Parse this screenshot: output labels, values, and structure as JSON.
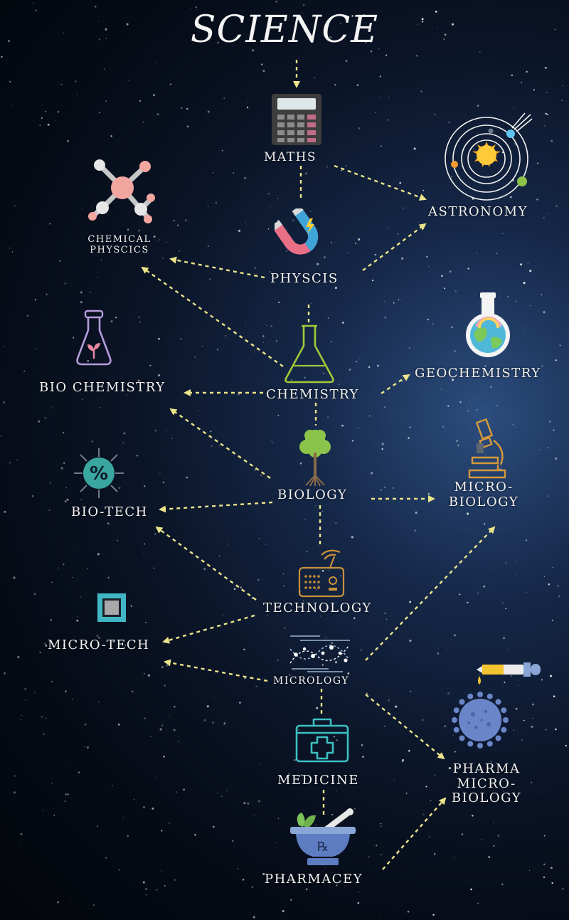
{
  "title": "SCIENCE",
  "labels": {
    "maths": "MATHS",
    "astronomy": "ASTRONOMY",
    "chemical_physics_line1": "CHEMICAL",
    "chemical_physics_line2": "PHYSCICS",
    "physics": "PHYSCIS",
    "bio_chemistry": "BIO CHEMISTRY",
    "chemistry": "CHEMISTRY",
    "geochemistry": "GEOCHEMISTRY",
    "biology": "BIOLOGY",
    "micro_biology_line1": "MICRO-",
    "micro_biology_line2": "BIOLOGY",
    "bio_tech": "BIO-TECH",
    "technology": "TECHNOLOGY",
    "micro_tech": "MICRO-TECH",
    "micrology": "MICROLOGY",
    "medicine": "MEDICINE",
    "pharma_line1": "PHARMA",
    "pharma_line2": "MICRO-",
    "pharma_line3": "BIOLOGY",
    "pharmacey": "PHARMACEY",
    "rx_symbol": "℞",
    "percent_symbol": "%"
  },
  "colors": {
    "arrow": "#ece58a",
    "label": "#f2f2f2",
    "background": "#050a14"
  },
  "icons": [
    "calculator-icon",
    "solar-system-icon",
    "molecule-icon",
    "magnet-icon",
    "flask-icon",
    "plant-flask-icon",
    "earth-flask-icon",
    "tree-icon",
    "microscope-icon",
    "virus-icon",
    "radio-icon",
    "chip-icon",
    "dna-dots-icon",
    "first-aid-kit-icon",
    "mortar-pestle-icon",
    "dropper-icon",
    "bacteria-icon"
  ]
}
